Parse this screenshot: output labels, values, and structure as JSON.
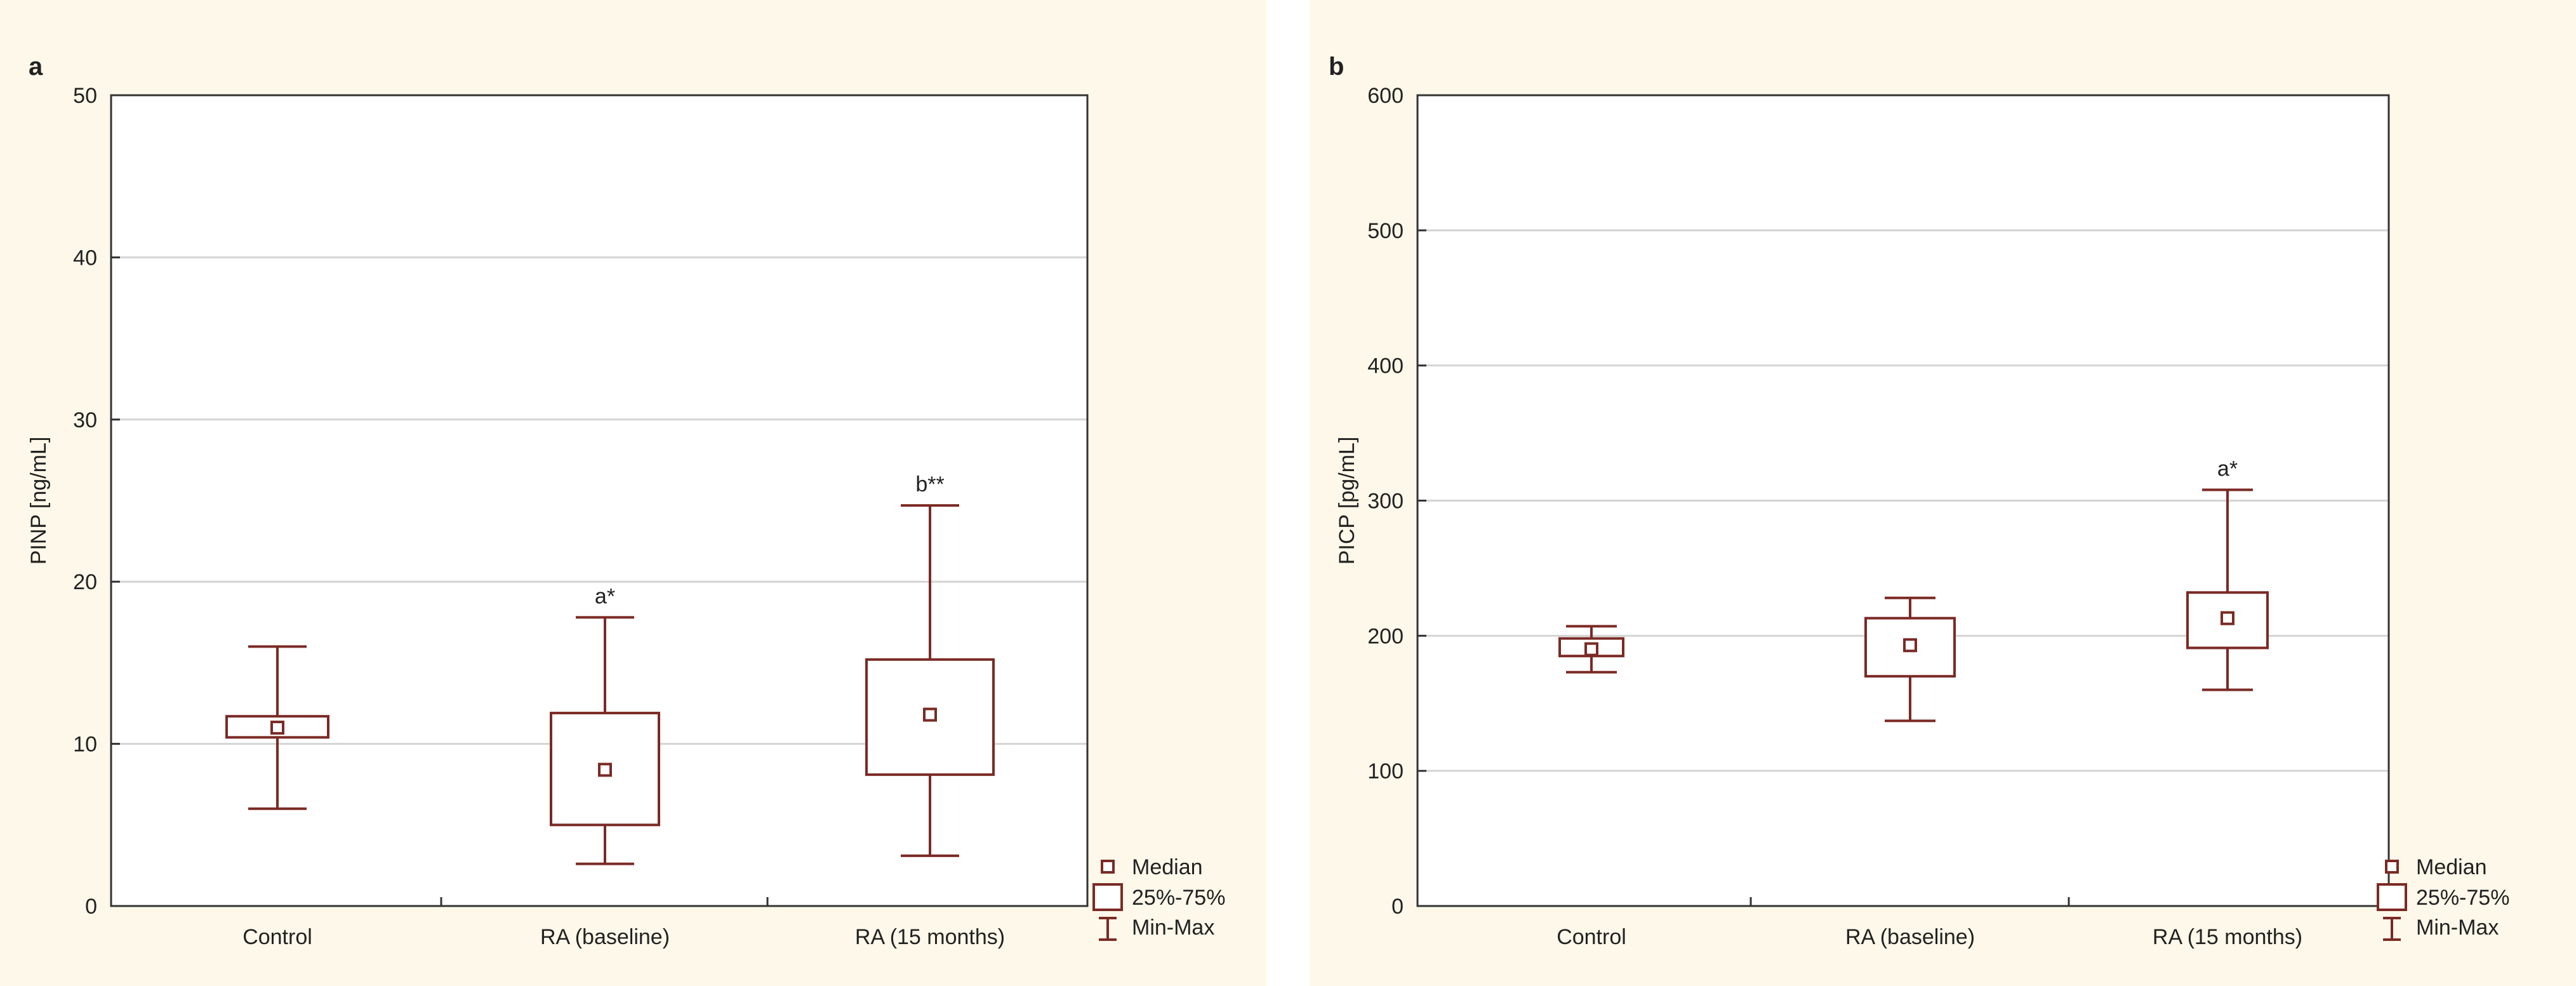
{
  "chart_data": [
    {
      "type": "boxplot",
      "panel_label": "a",
      "title": "",
      "xlabel": "",
      "ylabel": "PINP [ng/mL]",
      "ylim": [
        0,
        50
      ],
      "yticks": [
        0,
        10,
        20,
        30,
        40,
        50
      ],
      "grid": true,
      "categories": [
        "Control",
        "RA (baseline)",
        "RA (15 months)"
      ],
      "boxes": [
        {
          "min": 6.0,
          "q1": 10.4,
          "median": 11.0,
          "q3": 11.7,
          "max": 16.0,
          "annotation": ""
        },
        {
          "min": 2.6,
          "q1": 5.0,
          "median": 8.4,
          "q3": 11.9,
          "max": 17.8,
          "annotation": "a*"
        },
        {
          "min": 3.1,
          "q1": 8.1,
          "median": 11.8,
          "q3": 15.2,
          "max": 24.7,
          "annotation": "b**"
        }
      ],
      "legend": {
        "position": "bottom-right",
        "items": [
          "Median",
          "25%-75%",
          "Min-Max"
        ]
      },
      "color": "#7b2a25"
    },
    {
      "type": "boxplot",
      "panel_label": "b",
      "title": "",
      "xlabel": "",
      "ylabel": "PICP [pg/mL]",
      "ylim": [
        0,
        600
      ],
      "yticks": [
        0,
        100,
        200,
        300,
        400,
        500,
        600
      ],
      "grid": true,
      "categories": [
        "Control",
        "RA (baseline)",
        "RA (15 months)"
      ],
      "boxes": [
        {
          "min": 173,
          "q1": 185,
          "median": 190,
          "q3": 198,
          "max": 207,
          "annotation": ""
        },
        {
          "min": 137,
          "q1": 170,
          "median": 193,
          "q3": 213,
          "max": 228,
          "annotation": ""
        },
        {
          "min": 160,
          "q1": 191,
          "median": 213,
          "q3": 232,
          "max": 308,
          "annotation": "a*"
        }
      ],
      "legend": {
        "position": "bottom-right",
        "items": [
          "Median",
          "25%-75%",
          "Min-Max"
        ]
      },
      "color": "#7b2a25"
    }
  ]
}
